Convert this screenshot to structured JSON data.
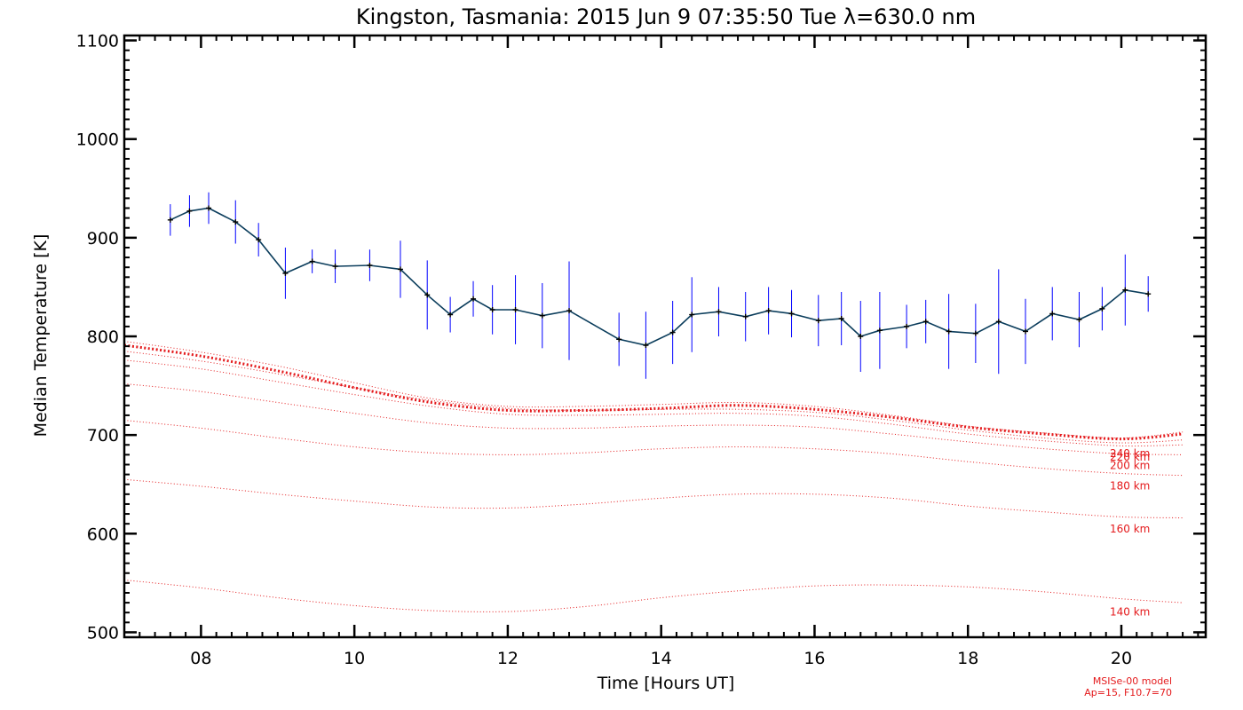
{
  "chart_data": {
    "type": "line",
    "title": "Kingston, Tasmania: 2015 Jun  9 07:35:50 Tue λ=630.0 nm",
    "xlabel": "Time [Hours UT]",
    "ylabel": "Median Temperature [K]",
    "xlim": [
      7.0,
      21.1
    ],
    "ylim": [
      495,
      1105
    ],
    "xticks": [
      8,
      10,
      12,
      14,
      16,
      18,
      20
    ],
    "xtick_labels": [
      "08",
      "10",
      "12",
      "14",
      "16",
      "18",
      "20"
    ],
    "yticks": [
      500,
      600,
      700,
      800,
      900,
      1000,
      1100
    ],
    "ytick_labels": [
      "500",
      "600",
      "700",
      "800",
      "900",
      "1000",
      "1100"
    ],
    "grid": false,
    "colors": {
      "observed_line": "#0b3d5c",
      "error_bars": "#0000ff",
      "model": "#e41a1c",
      "axes": "#000000"
    },
    "observed": {
      "x": [
        7.6,
        7.85,
        8.1,
        8.45,
        8.75,
        9.1,
        9.45,
        9.75,
        10.2,
        10.6,
        10.95,
        11.25,
        11.55,
        11.8,
        12.1,
        12.45,
        12.8,
        13.45,
        13.8,
        14.15,
        14.4,
        14.75,
        15.1,
        15.4,
        15.7,
        16.05,
        16.35,
        16.6,
        16.85,
        17.2,
        17.45,
        17.75,
        18.1,
        18.4,
        18.75,
        19.1,
        19.45,
        19.75,
        20.05,
        20.35
      ],
      "y": [
        918,
        927,
        930,
        916,
        898,
        864,
        876,
        871,
        872,
        868,
        842,
        822,
        838,
        827,
        827,
        821,
        826,
        797,
        791,
        804,
        822,
        825,
        820,
        826,
        823,
        816,
        818,
        800,
        806,
        810,
        815,
        805,
        803,
        815,
        805,
        823,
        817,
        828,
        847,
        843
      ],
      "yerr": [
        16,
        16,
        16,
        22,
        17,
        26,
        12,
        17,
        16,
        29,
        35,
        18,
        18,
        25,
        35,
        33,
        50,
        27,
        34,
        32,
        38,
        25,
        25,
        24,
        24,
        26,
        27,
        36,
        39,
        22,
        22,
        38,
        30,
        53,
        33,
        27,
        28,
        22,
        36,
        18
      ]
    },
    "model": {
      "x": [
        7.0,
        8.0,
        9.0,
        10.0,
        11.0,
        12.0,
        13.0,
        14.0,
        15.0,
        16.0,
        17.0,
        18.0,
        19.0,
        20.0,
        20.8
      ],
      "series": [
        {
          "name": "140 km",
          "values": [
            553,
            545,
            535,
            527,
            522,
            521,
            526,
            535,
            542,
            547,
            548,
            546,
            541,
            534,
            530
          ]
        },
        {
          "name": "160 km",
          "values": [
            655,
            648,
            640,
            633,
            627,
            626,
            630,
            636,
            640,
            640,
            636,
            628,
            622,
            617,
            616
          ]
        },
        {
          "name": "180 km",
          "values": [
            715,
            707,
            697,
            688,
            682,
            680,
            682,
            686,
            688,
            686,
            681,
            673,
            666,
            661,
            659
          ]
        },
        {
          "name": "200 km",
          "values": [
            752,
            744,
            733,
            722,
            712,
            707,
            707,
            709,
            710,
            708,
            701,
            693,
            686,
            681,
            680
          ]
        },
        {
          "name": "220 km",
          "values": [
            776,
            767,
            754,
            741,
            729,
            721,
            720,
            721,
            722,
            719,
            711,
            701,
            694,
            689,
            690
          ]
        },
        {
          "name": "240 km",
          "values": [
            785,
            775,
            762,
            748,
            735,
            727,
            725,
            726,
            726,
            723,
            715,
            705,
            697,
            692,
            695
          ]
        },
        {
          "name": "",
          "values": [
            791,
            780,
            765,
            748,
            733,
            725,
            725,
            727,
            730,
            726,
            718,
            708,
            701,
            696,
            701
          ]
        },
        {
          "name": "",
          "values": [
            795,
            784,
            770,
            753,
            737,
            729,
            729,
            731,
            733,
            729,
            720,
            709,
            702,
            697,
            703
          ]
        }
      ],
      "highlight_series_index": 6,
      "note_lines": [
        "MSISe-00 model",
        "Ap=15, F10.7=70"
      ]
    }
  }
}
